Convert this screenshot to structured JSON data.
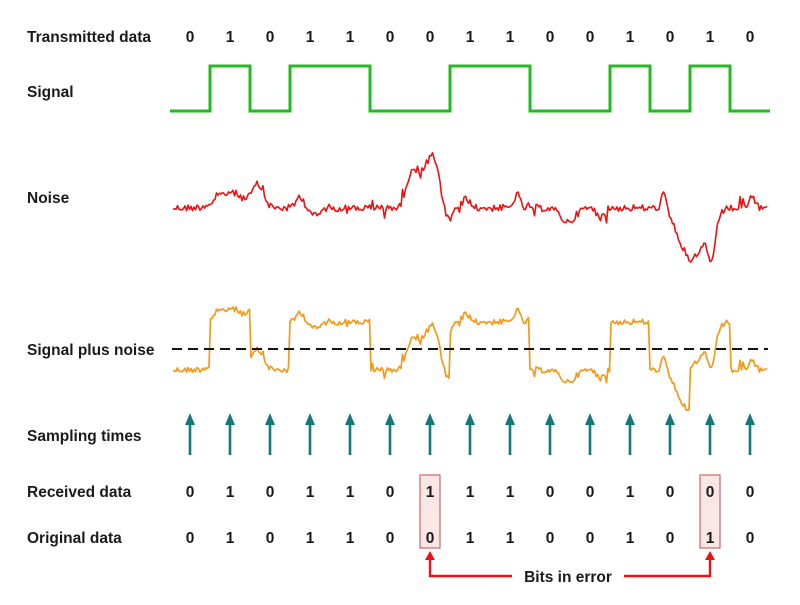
{
  "rows": {
    "transmitted": "Transmitted data",
    "signal": "Signal",
    "noise": "Noise",
    "signal_plus_noise": "Signal plus noise",
    "sampling": "Sampling times",
    "received": "Received data",
    "original": "Original data"
  },
  "transmitted_bits": [
    0,
    1,
    0,
    1,
    1,
    0,
    0,
    1,
    1,
    0,
    0,
    1,
    0,
    1,
    0
  ],
  "received_bits": [
    0,
    1,
    0,
    1,
    1,
    0,
    1,
    1,
    1,
    0,
    0,
    1,
    0,
    0,
    0
  ],
  "original_bits": [
    0,
    1,
    0,
    1,
    1,
    0,
    0,
    1,
    1,
    0,
    0,
    1,
    0,
    1,
    0
  ],
  "error_indices": [
    6,
    13
  ],
  "error_label": "Bits in error",
  "colors": {
    "signal": "#22bb22",
    "noise": "#ee1111",
    "signal_plus_noise": "#f39a1b",
    "threshold": "#111111",
    "sampling_arrow": "#117a78",
    "error_box_stroke": "#cc6666",
    "error_box_fill": "#fbe6e6",
    "error_arrow": "#ee1111",
    "text": "#1a1a1a"
  }
}
